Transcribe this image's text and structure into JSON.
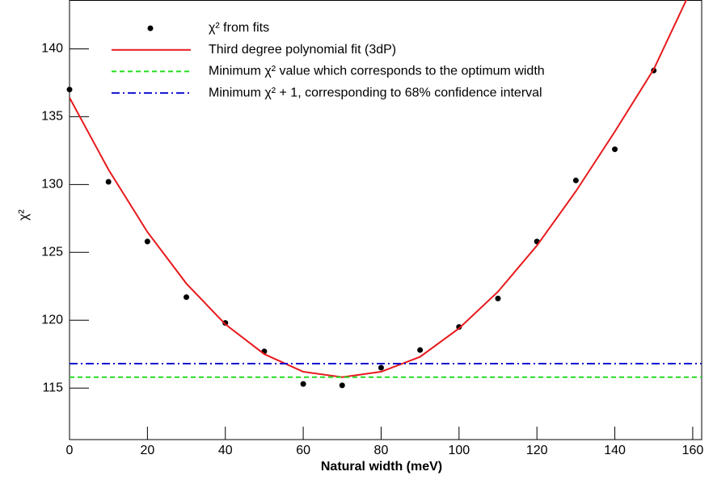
{
  "chart_data": {
    "type": "scatter",
    "xlabel": "Natural width (meV)",
    "ylabel": "χ²",
    "xlim": [
      0,
      162.3
    ],
    "ylim": [
      111.2,
      143.6
    ],
    "xticks": [
      0,
      20,
      40,
      60,
      80,
      100,
      120,
      140,
      160
    ],
    "yticks": [
      115,
      120,
      125,
      130,
      135,
      140
    ],
    "series": [
      {
        "name": "χ² from fits",
        "kind": "points",
        "color": "#000000",
        "x": [
          0,
          10,
          20,
          30,
          40,
          50,
          60,
          70,
          80,
          90,
          100,
          110,
          120,
          130,
          140,
          150
        ],
        "values": [
          137.0,
          130.2,
          125.8,
          121.7,
          119.8,
          117.7,
          115.3,
          115.2,
          116.5,
          117.8,
          119.5,
          121.6,
          125.8,
          130.3,
          132.6,
          138.4
        ]
      },
      {
        "name": "Third degree polynomial fit (3dP)",
        "kind": "line",
        "color": "#e8191c",
        "dash": "",
        "x": [
          0,
          10,
          20,
          30,
          40,
          50,
          60,
          70,
          80,
          90,
          100,
          110,
          120,
          130,
          140,
          150,
          160
        ],
        "values": [
          136.4,
          131.1,
          126.5,
          122.7,
          119.7,
          117.5,
          116.2,
          115.8,
          116.2,
          117.3,
          119.4,
          122.1,
          125.5,
          129.5,
          133.9,
          138.5,
          144.6
        ]
      },
      {
        "name": "Minimum χ² value which corresponds to the optimum width",
        "kind": "hline",
        "color": "#22dd22",
        "dash": "6 4",
        "x": [
          0,
          162.3
        ],
        "values": [
          115.8,
          115.8
        ]
      },
      {
        "name": "Minimum χ² + 1, corresponding to 68% confidence interval",
        "kind": "hline",
        "color": "#1010d0",
        "dash": "10 4 2 4",
        "x": [
          0,
          162.3
        ],
        "values": [
          116.8,
          116.8
        ]
      }
    ]
  }
}
